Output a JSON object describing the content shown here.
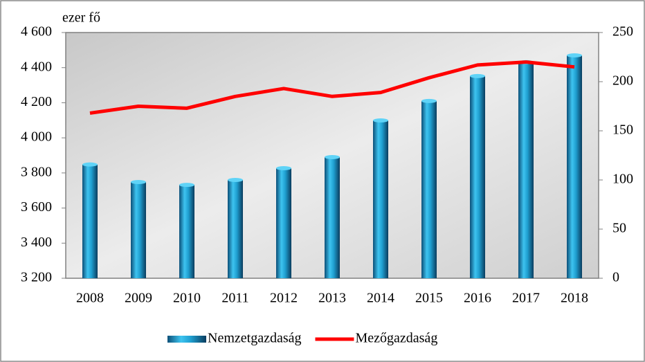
{
  "chart_data": {
    "type": "bar-line",
    "y_unit_label": "ezer fő",
    "categories": [
      "2008",
      "2009",
      "2010",
      "2011",
      "2012",
      "2013",
      "2014",
      "2015",
      "2016",
      "2017",
      "2018"
    ],
    "series": [
      {
        "name": "Nemzetgazdaság",
        "type": "bar",
        "color": "#1f9fd0",
        "axis": "y",
        "values": [
          3848,
          3748,
          3732,
          3760,
          3827,
          3890,
          4099,
          4210,
          4352,
          4431,
          4470
        ]
      },
      {
        "name": "Mezőgazdaság",
        "type": "line",
        "color": "#ff0000",
        "axis": "y2",
        "values": [
          168,
          175,
          173,
          185,
          193,
          185,
          189,
          204,
          217,
          220,
          215
        ]
      }
    ],
    "ylim": [
      3200,
      4600
    ],
    "yticks": [
      {
        "value": 3200,
        "label": "3 200"
      },
      {
        "value": 3400,
        "label": "3 400"
      },
      {
        "value": 3600,
        "label": "3 600"
      },
      {
        "value": 3800,
        "label": "3 800"
      },
      {
        "value": 4000,
        "label": "4 000"
      },
      {
        "value": 4200,
        "label": "4 200"
      },
      {
        "value": 4400,
        "label": "4 400"
      },
      {
        "value": 4600,
        "label": "4 600"
      }
    ],
    "y2lim": [
      0,
      250
    ],
    "y2ticks": [
      0,
      50,
      100,
      150,
      200,
      250
    ],
    "grid": false,
    "legend": "bottom"
  }
}
